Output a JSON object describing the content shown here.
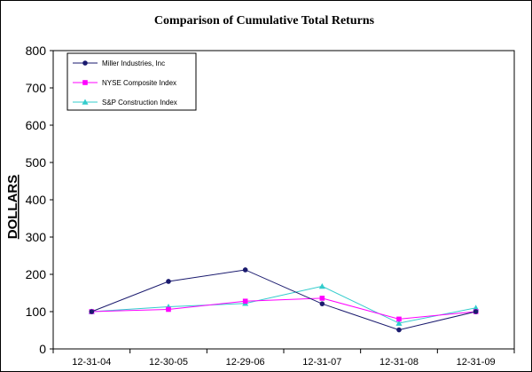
{
  "chart_data": {
    "type": "line",
    "title": "Comparison of Cumulative Total Returns",
    "xlabel": "",
    "ylabel": "DOLLARS",
    "categories": [
      "12-31-04",
      "12-30-05",
      "12-29-06",
      "12-31-07",
      "12-31-08",
      "12-31-09"
    ],
    "ylim": [
      0,
      800
    ],
    "yticks": [
      0,
      100,
      200,
      300,
      400,
      500,
      600,
      700,
      800
    ],
    "grid": false,
    "legend_position": "top-left",
    "series": [
      {
        "name": "Miller Industries, Inc",
        "color": "#1a1a6e",
        "marker": "circle",
        "values": [
          100,
          181,
          212,
          121,
          51,
          100
        ]
      },
      {
        "name": "NYSE Composite Index",
        "color": "#ff00ff",
        "marker": "square",
        "values": [
          100,
          106,
          128,
          136,
          80,
          100
        ]
      },
      {
        "name": "S&P Construction Index",
        "color": "#33cccc",
        "marker": "triangle",
        "values": [
          100,
          113,
          122,
          168,
          69,
          110
        ]
      }
    ]
  }
}
